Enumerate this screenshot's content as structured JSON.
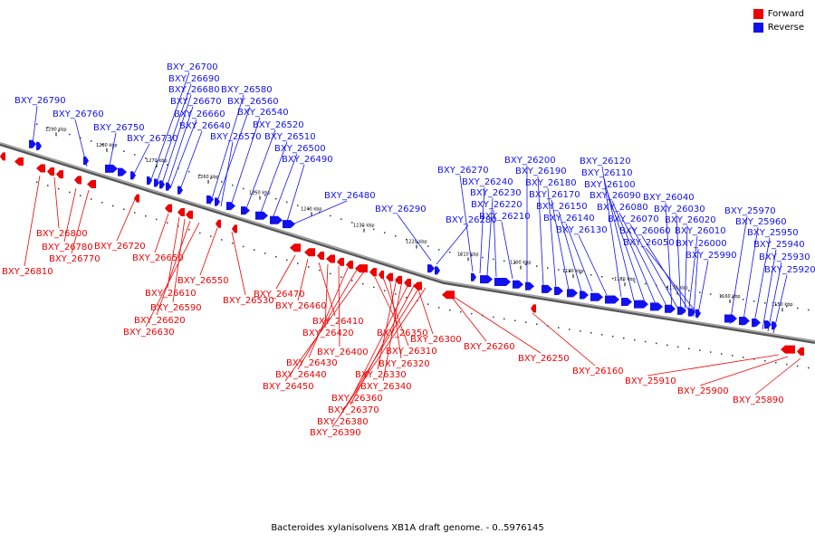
{
  "colors": {
    "forward": "#ee0000",
    "reverse": "#1111ee",
    "backbone": "#808080"
  },
  "legend": [
    {
      "label": "Forward",
      "color": "#ee0000"
    },
    {
      "label": "Reverse",
      "color": "#1111ee"
    }
  ],
  "caption": "Bacteroides xylanisolvens XB1A draft genome. - 0..5976145",
  "ticks": [
    "1290 kbp",
    "1280 kbp",
    "1270 kbp",
    "1260 kbp",
    "1250 kbp",
    "1240 kbp",
    "1230 kbp",
    "1220 kbp",
    "1210 kbp",
    "1200 kbp",
    "1190 kbp",
    "1180 kbp",
    "1170 kbp",
    "1160 kbp",
    "1150 kbp"
  ],
  "reverse_labels": [
    "BXY_26790",
    "BXY_26760",
    "BXY_26750",
    "BXY_26730",
    "BXY_26700",
    "BXY_26690",
    "BXY_26680",
    "BXY_26670",
    "BXY_26660",
    "BXY_26640",
    "BXY_26580",
    "BXY_26560",
    "BXY_26570",
    "BXY_26540",
    "BXY_26520",
    "BXY_26510",
    "BXY_26500",
    "BXY_26490",
    "BXY_26480",
    "BXY_26290",
    "BXY_26280",
    "BXY_26270",
    "BXY_26240",
    "BXY_26230",
    "BXY_26220",
    "BXY_26210",
    "BXY_26200",
    "BXY_26190",
    "BXY_26180",
    "BXY_26170",
    "BXY_26150",
    "BXY_26140",
    "BXY_26130",
    "BXY_26120",
    "BXY_26110",
    "BXY_26100",
    "BXY_26090",
    "BXY_26080",
    "BXY_26070",
    "BXY_26060",
    "BXY_26050",
    "BXY_26040",
    "BXY_26030",
    "BXY_26020",
    "BXY_26010",
    "BXY_26000",
    "BXY_25990",
    "BXY_25970",
    "BXY_25960",
    "BXY_25950",
    "BXY_25940",
    "BXY_25930",
    "BXY_25920"
  ],
  "forward_labels": [
    "BXY_26800",
    "BXY_26780",
    "BXY_26770",
    "BXY_26810",
    "BXY_26720",
    "BXY_26650",
    "BXY_26610",
    "BXY_26590",
    "BXY_26620",
    "BXY_26630",
    "BXY_26550",
    "BXY_26530",
    "BXY_26470",
    "BXY_26460",
    "BXY_26410",
    "BXY_26420",
    "BXY_26400",
    "BXY_26430",
    "BXY_26440",
    "BXY_26450",
    "BXY_26350",
    "BXY_26310",
    "BXY_26320",
    "BXY_26330",
    "BXY_26340",
    "BXY_26360",
    "BXY_26370",
    "BXY_26380",
    "BXY_26390",
    "BXY_26300",
    "BXY_26260",
    "BXY_26250",
    "BXY_26160",
    "BXY_25910",
    "BXY_25900",
    "BXY_25890"
  ]
}
